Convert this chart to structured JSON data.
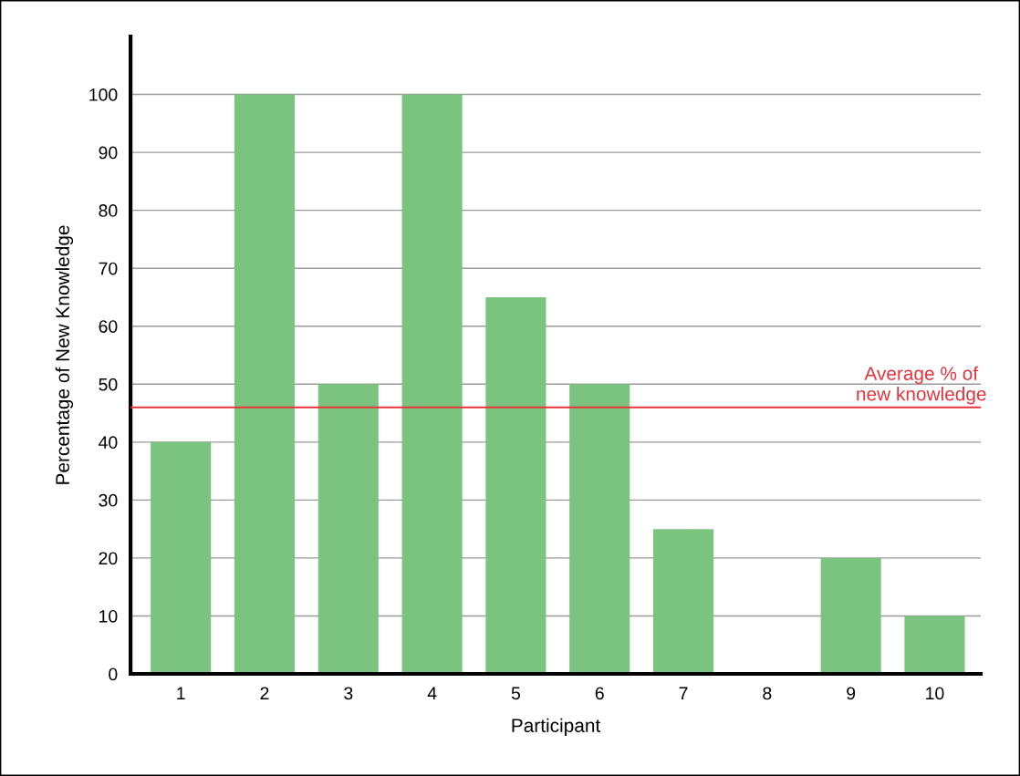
{
  "chart_data": {
    "type": "bar",
    "xlabel": "Participant",
    "ylabel": "Percentage of New Knowledge",
    "categories": [
      "1",
      "2",
      "3",
      "4",
      "5",
      "6",
      "7",
      "8",
      "9",
      "10"
    ],
    "values": [
      40,
      100,
      50,
      100,
      65,
      50,
      25,
      0,
      20,
      10
    ],
    "color": "#7bc47f",
    "ylim": [
      0,
      110
    ],
    "yticks": [
      0,
      10,
      20,
      30,
      40,
      50,
      60,
      70,
      80,
      90,
      100
    ],
    "grid": "y",
    "legend": false,
    "ref_lines": [
      {
        "axis": "y",
        "value": 46,
        "label": "Average % of\nnew knowledge",
        "color": "#e8323c"
      }
    ]
  }
}
